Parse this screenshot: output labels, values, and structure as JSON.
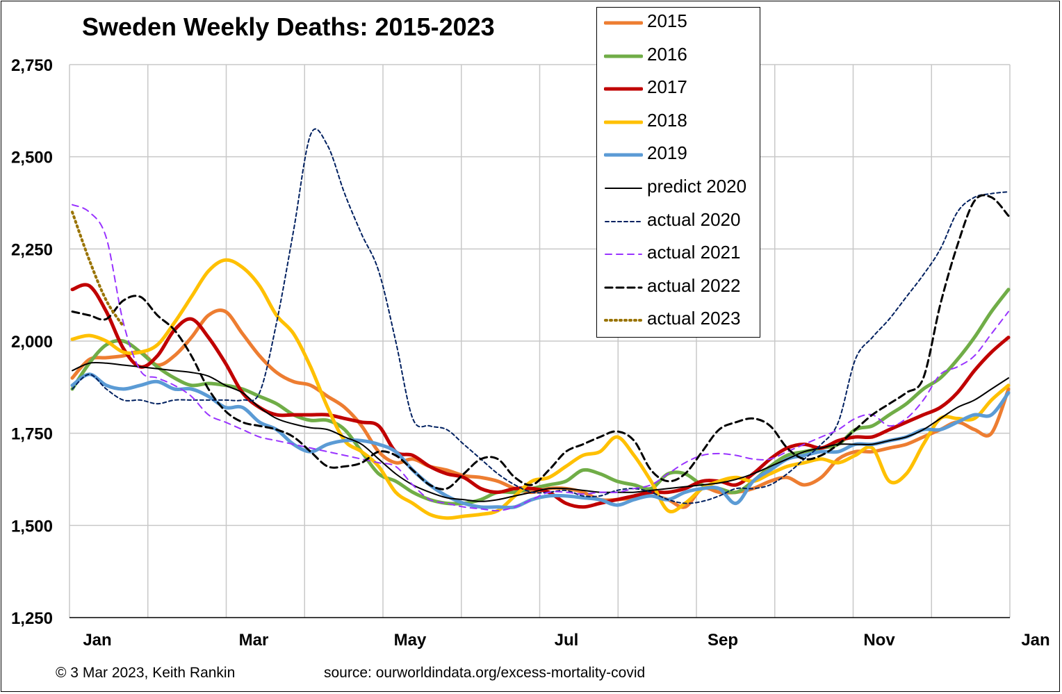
{
  "chart_data": {
    "type": "line",
    "title": "Sweden Weekly Deaths: 2015-2023",
    "xlabel": "",
    "ylabel": "",
    "ylim": [
      1250,
      2750
    ],
    "xlim": [
      1,
      52
    ],
    "yticks": [
      1250,
      1500,
      1750,
      2000,
      2250,
      2500,
      2750
    ],
    "ytick_labels": [
      "1,250",
      "1,500",
      "1,750",
      "2,000",
      "2,250",
      "2,500",
      "2,750"
    ],
    "xtick_labels": [
      "Jan",
      "Mar",
      "May",
      "Jul",
      "Sep",
      "Nov",
      "Jan"
    ],
    "grid": true,
    "legend_position": "top-right",
    "series": [
      {
        "name": "2015",
        "color": "#ED7D31",
        "style": "solid",
        "width": 5,
        "values": [
          1900,
          1950,
          1955,
          1960,
          1970,
          1935,
          1960,
          2010,
          2070,
          2080,
          2020,
          1960,
          1915,
          1890,
          1880,
          1850,
          1820,
          1770,
          1700,
          1670,
          1680,
          1660,
          1650,
          1635,
          1630,
          1620,
          1600,
          1590,
          1600,
          1600,
          1590,
          1570,
          1570,
          1575,
          1580,
          1570,
          1550,
          1600,
          1590,
          1590,
          1600,
          1620,
          1630,
          1610,
          1630,
          1680,
          1700,
          1700,
          1710,
          1720,
          1740,
          1760,
          1780,
          1760,
          1750,
          1870
        ]
      },
      {
        "name": "2016",
        "color": "#70AD47",
        "style": "solid",
        "width": 5,
        "values": [
          1870,
          1940,
          1990,
          2000,
          1970,
          1930,
          1900,
          1880,
          1885,
          1880,
          1870,
          1850,
          1830,
          1800,
          1785,
          1785,
          1760,
          1700,
          1640,
          1620,
          1590,
          1570,
          1560,
          1560,
          1570,
          1590,
          1590,
          1600,
          1610,
          1620,
          1650,
          1640,
          1620,
          1610,
          1600,
          1640,
          1640,
          1610,
          1600,
          1590,
          1620,
          1660,
          1690,
          1700,
          1710,
          1720,
          1760,
          1770,
          1800,
          1830,
          1870,
          1900,
          1950,
          2010,
          2080,
          2140
        ]
      },
      {
        "name": "2017",
        "color": "#C00000",
        "style": "solid",
        "width": 5,
        "values": [
          2140,
          2150,
          2080,
          1980,
          1930,
          1960,
          2030,
          2060,
          2010,
          1940,
          1860,
          1820,
          1800,
          1800,
          1800,
          1800,
          1790,
          1780,
          1770,
          1700,
          1690,
          1660,
          1640,
          1630,
          1600,
          1590,
          1600,
          1600,
          1590,
          1560,
          1550,
          1560,
          1570,
          1580,
          1590,
          1590,
          1600,
          1620,
          1620,
          1610,
          1640,
          1680,
          1710,
          1720,
          1710,
          1730,
          1740,
          1740,
          1760,
          1780,
          1800,
          1820,
          1860,
          1920,
          1970,
          2010
        ]
      },
      {
        "name": "2018",
        "color": "#FFC000",
        "style": "solid",
        "width": 5,
        "values": [
          2005,
          2015,
          2000,
          1970,
          1970,
          1990,
          2050,
          2120,
          2190,
          2220,
          2200,
          2150,
          2070,
          2020,
          1930,
          1820,
          1730,
          1700,
          1660,
          1590,
          1560,
          1530,
          1520,
          1525,
          1530,
          1540,
          1580,
          1620,
          1630,
          1660,
          1690,
          1700,
          1740,
          1690,
          1620,
          1540,
          1560,
          1600,
          1620,
          1630,
          1620,
          1640,
          1660,
          1670,
          1680,
          1670,
          1690,
          1710,
          1620,
          1640,
          1720,
          1790,
          1790,
          1790,
          1840,
          1880
        ]
      },
      {
        "name": "2019",
        "color": "#5B9BD5",
        "style": "solid",
        "width": 5,
        "values": [
          1880,
          1910,
          1880,
          1870,
          1880,
          1890,
          1870,
          1870,
          1850,
          1820,
          1820,
          1780,
          1760,
          1720,
          1700,
          1720,
          1730,
          1730,
          1720,
          1700,
          1650,
          1610,
          1580,
          1560,
          1550,
          1550,
          1550,
          1570,
          1580,
          1580,
          1575,
          1570,
          1555,
          1570,
          1580,
          1570,
          1590,
          1600,
          1600,
          1560,
          1620,
          1650,
          1680,
          1690,
          1700,
          1700,
          1720,
          1720,
          1730,
          1740,
          1760,
          1760,
          1780,
          1800,
          1800,
          1860
        ]
      },
      {
        "name": "predict 2020",
        "color": "#000000",
        "style": "solid",
        "width": 2,
        "values": [
          1920,
          1940,
          1940,
          1935,
          1930,
          1925,
          1920,
          1915,
          1905,
          1880,
          1860,
          1820,
          1790,
          1775,
          1765,
          1760,
          1740,
          1720,
          1680,
          1640,
          1610,
          1590,
          1575,
          1570,
          1565,
          1570,
          1580,
          1590,
          1600,
          1600,
          1595,
          1590,
          1590,
          1590,
          1595,
          1600,
          1605,
          1610,
          1615,
          1625,
          1640,
          1660,
          1680,
          1700,
          1710,
          1720,
          1720,
          1720,
          1730,
          1740,
          1760,
          1790,
          1820,
          1840,
          1870,
          1900
        ]
      },
      {
        "name": "actual 2020",
        "color": "#002060",
        "style": "dash-fine",
        "width": 2,
        "values": [
          1870,
          1910,
          1870,
          1840,
          1840,
          1830,
          1840,
          1840,
          1840,
          1840,
          1840,
          1860,
          2050,
          2300,
          2560,
          2530,
          2400,
          2290,
          2190,
          2000,
          1790,
          1770,
          1760,
          1720,
          1680,
          1640,
          1610,
          1590,
          1590,
          1595,
          1580,
          1580,
          1595,
          1600,
          1590,
          1570,
          1560,
          1565,
          1580,
          1600,
          1600,
          1610,
          1640,
          1680,
          1720,
          1780,
          1950,
          2010,
          2060,
          2120,
          2180,
          2250,
          2350,
          2390,
          2400,
          2405
        ]
      },
      {
        "name": "actual 2021",
        "color": "#9933FF",
        "style": "dash",
        "width": 2,
        "values": [
          2370,
          2350,
          2280,
          2050,
          1920,
          1900,
          1880,
          1850,
          1800,
          1780,
          1760,
          1740,
          1730,
          1720,
          1710,
          1700,
          1690,
          1680,
          1670,
          1660,
          1610,
          1570,
          1560,
          1550,
          1545,
          1540,
          1550,
          1570,
          1590,
          1590,
          1585,
          1590,
          1590,
          1600,
          1610,
          1640,
          1670,
          1690,
          1695,
          1690,
          1680,
          1680,
          1700,
          1720,
          1740,
          1760,
          1790,
          1800,
          1770,
          1790,
          1840,
          1910,
          1930,
          1960,
          2020,
          2080
        ]
      },
      {
        "name": "actual 2022",
        "color": "#000000",
        "style": "dash-bold",
        "width": 3,
        "values": [
          2080,
          2070,
          2060,
          2110,
          2120,
          2070,
          2030,
          1960,
          1870,
          1810,
          1780,
          1770,
          1760,
          1740,
          1700,
          1660,
          1660,
          1670,
          1700,
          1690,
          1650,
          1610,
          1600,
          1640,
          1680,
          1680,
          1630,
          1610,
          1650,
          1700,
          1720,
          1740,
          1755,
          1730,
          1650,
          1620,
          1640,
          1700,
          1760,
          1780,
          1790,
          1770,
          1710,
          1680,
          1690,
          1720,
          1760,
          1800,
          1830,
          1860,
          1900,
          2100,
          2260,
          2380,
          2390,
          2340
        ]
      },
      {
        "name": "actual 2023",
        "color": "#997300",
        "style": "dot",
        "width": 4,
        "values": [
          2350,
          2220,
          2110,
          2040
        ]
      }
    ]
  },
  "footer": {
    "copyright": "© 3 Mar 2023, Keith Rankin",
    "source": "source: ourworldindata.org/excess-mortality-covid"
  }
}
